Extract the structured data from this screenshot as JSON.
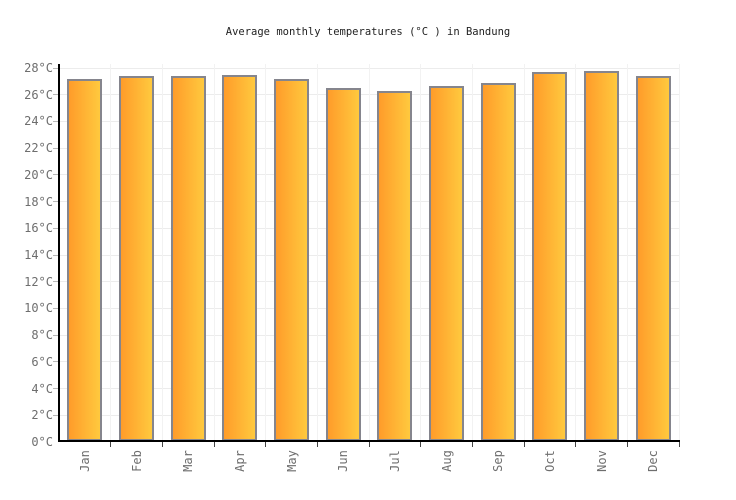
{
  "title": "Average monthly temperatures (°C ) in Bandung",
  "chart_data": {
    "type": "bar",
    "title": "Average monthly temperatures (°C ) in Bandung",
    "categories": [
      "Jan",
      "Feb",
      "Mar",
      "Apr",
      "May",
      "Jun",
      "Jul",
      "Aug",
      "Sep",
      "Oct",
      "Nov",
      "Dec"
    ],
    "values": [
      27.1,
      27.3,
      27.3,
      27.4,
      27.1,
      26.4,
      26.2,
      26.6,
      26.8,
      27.6,
      27.7,
      27.3
    ],
    "series_name": "Average monthly temperature",
    "y_unit": "°C",
    "xlabel": "",
    "ylabel": "",
    "ylim": [
      0,
      28.3
    ],
    "ytick_step": 2,
    "ytick_labels": [
      "0°C",
      "2°C",
      "4°C",
      "6°C",
      "8°C",
      "10°C",
      "12°C",
      "14°C",
      "16°C",
      "18°C",
      "20°C",
      "22°C",
      "24°C",
      "26°C",
      "28°C"
    ],
    "grid": true,
    "legend_position": "none",
    "colors": {
      "bar_gradient_start": "#ff9c2a",
      "bar_gradient_end": "#ffc93e",
      "bar_border": "#85858d",
      "axis": "#000000",
      "grid_horizontal": "#ececec",
      "grid_vertical": "#f2f2f2",
      "tick_y": "#b8b8b8",
      "tick_x": "#444444",
      "axis_label_text": "#6e6e6e",
      "title_text": "#222222",
      "background": "#ffffff"
    }
  }
}
